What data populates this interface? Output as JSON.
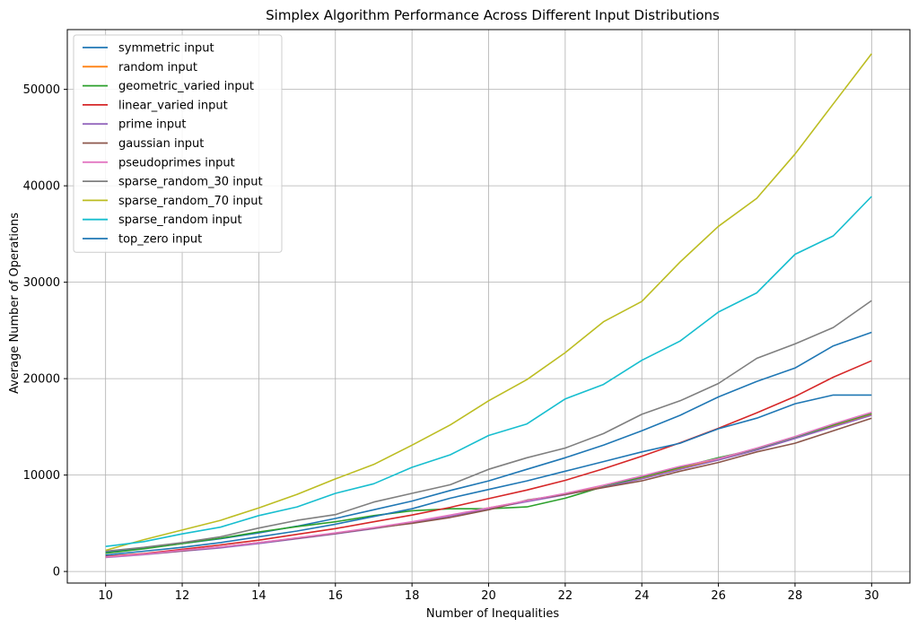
{
  "chart_data": {
    "type": "line",
    "title": "Simplex Algorithm Performance Across Different Input Distributions",
    "xlabel": "Number of Inequalities",
    "ylabel": "Average Number of Operations",
    "xlim": [
      9,
      31
    ],
    "ylim": [
      -1200,
      56200
    ],
    "xticks": [
      10,
      12,
      14,
      16,
      18,
      20,
      22,
      24,
      26,
      28,
      30
    ],
    "yticks": [
      0,
      10000,
      20000,
      30000,
      40000,
      50000
    ],
    "grid": true,
    "legend_position": "top-left",
    "x": [
      10,
      11,
      12,
      13,
      14,
      15,
      16,
      17,
      18,
      19,
      20,
      21,
      22,
      23,
      24,
      25,
      26,
      27,
      28,
      29,
      30
    ],
    "series": [
      {
        "name": "symmetric input",
        "color": "#1f77b4",
        "values": [
          2000,
          2400,
          2900,
          3400,
          4000,
          4700,
          5500,
          6400,
          7300,
          8400,
          9400,
          10600,
          11800,
          13100,
          14600,
          16200,
          18100,
          19700,
          21100,
          23400,
          24800
        ]
      },
      {
        "name": "random input",
        "color": "#ff7f0e",
        "values": [
          1550,
          1800,
          2150,
          2500,
          2950,
          3450,
          3950,
          4500,
          5100,
          5800,
          6600,
          7300,
          8000,
          8800,
          9700,
          10700,
          11600,
          12700,
          13900,
          15100,
          16300
        ]
      },
      {
        "name": "geometric_varied input",
        "color": "#2ca02c",
        "values": [
          1900,
          2350,
          2900,
          3450,
          4100,
          4650,
          5150,
          5800,
          6300,
          6500,
          6500,
          6700,
          7600,
          8800,
          9800,
          10800,
          11800,
          12700,
          13900,
          15200,
          16400
        ]
      },
      {
        "name": "linear_varied input",
        "color": "#d62728",
        "values": [
          1550,
          1850,
          2300,
          2750,
          3250,
          3850,
          4450,
          5150,
          5850,
          6650,
          7550,
          8450,
          9450,
          10650,
          11950,
          13350,
          14850,
          16450,
          18150,
          20150,
          21850
        ]
      },
      {
        "name": "prime input",
        "color": "#9467bd",
        "values": [
          1450,
          1750,
          2100,
          2450,
          2900,
          3400,
          3900,
          4450,
          5050,
          5750,
          6500,
          7250,
          7950,
          8750,
          9600,
          10600,
          11550,
          12600,
          13800,
          15000,
          16200
        ]
      },
      {
        "name": "gaussian input",
        "color": "#8c564b",
        "values": [
          1500,
          1800,
          2150,
          2550,
          3000,
          3450,
          3950,
          4500,
          5000,
          5600,
          6400,
          7400,
          8000,
          8700,
          9400,
          10400,
          11300,
          12400,
          13300,
          14600,
          15900
        ]
      },
      {
        "name": "pseudoprimes input",
        "color": "#e377c2",
        "values": [
          1500,
          1800,
          2200,
          2550,
          3000,
          3500,
          4000,
          4550,
          5150,
          5850,
          6600,
          7350,
          8100,
          8950,
          9900,
          10900,
          11700,
          12800,
          14000,
          15300,
          16500
        ]
      },
      {
        "name": "sparse_random_30 input",
        "color": "#7f7f7f",
        "values": [
          2100,
          2500,
          3000,
          3600,
          4500,
          5300,
          5900,
          7200,
          8100,
          9000,
          10600,
          11800,
          12800,
          14300,
          16300,
          17700,
          19500,
          22100,
          23600,
          25300,
          28100
        ]
      },
      {
        "name": "sparse_random_70 input",
        "color": "#bcbd22",
        "values": [
          2200,
          3300,
          4300,
          5300,
          6600,
          8000,
          9600,
          11100,
          13100,
          15200,
          17700,
          19900,
          22700,
          25900,
          28000,
          32100,
          35800,
          38700,
          43300,
          48500,
          53700
        ]
      },
      {
        "name": "sparse_random input",
        "color": "#17becf",
        "values": [
          2600,
          3100,
          3900,
          4600,
          5800,
          6700,
          8100,
          9100,
          10800,
          12100,
          14100,
          15300,
          17900,
          19400,
          21900,
          23900,
          26900,
          28900,
          32900,
          34800,
          38900
        ]
      },
      {
        "name": "top_zero input",
        "color": "#1f77b4",
        "values": [
          1700,
          2100,
          2500,
          3000,
          3600,
          4200,
          4900,
          5700,
          6500,
          7600,
          8500,
          9400,
          10400,
          11400,
          12400,
          13300,
          14800,
          15900,
          17400,
          18300,
          18300
        ]
      }
    ]
  }
}
